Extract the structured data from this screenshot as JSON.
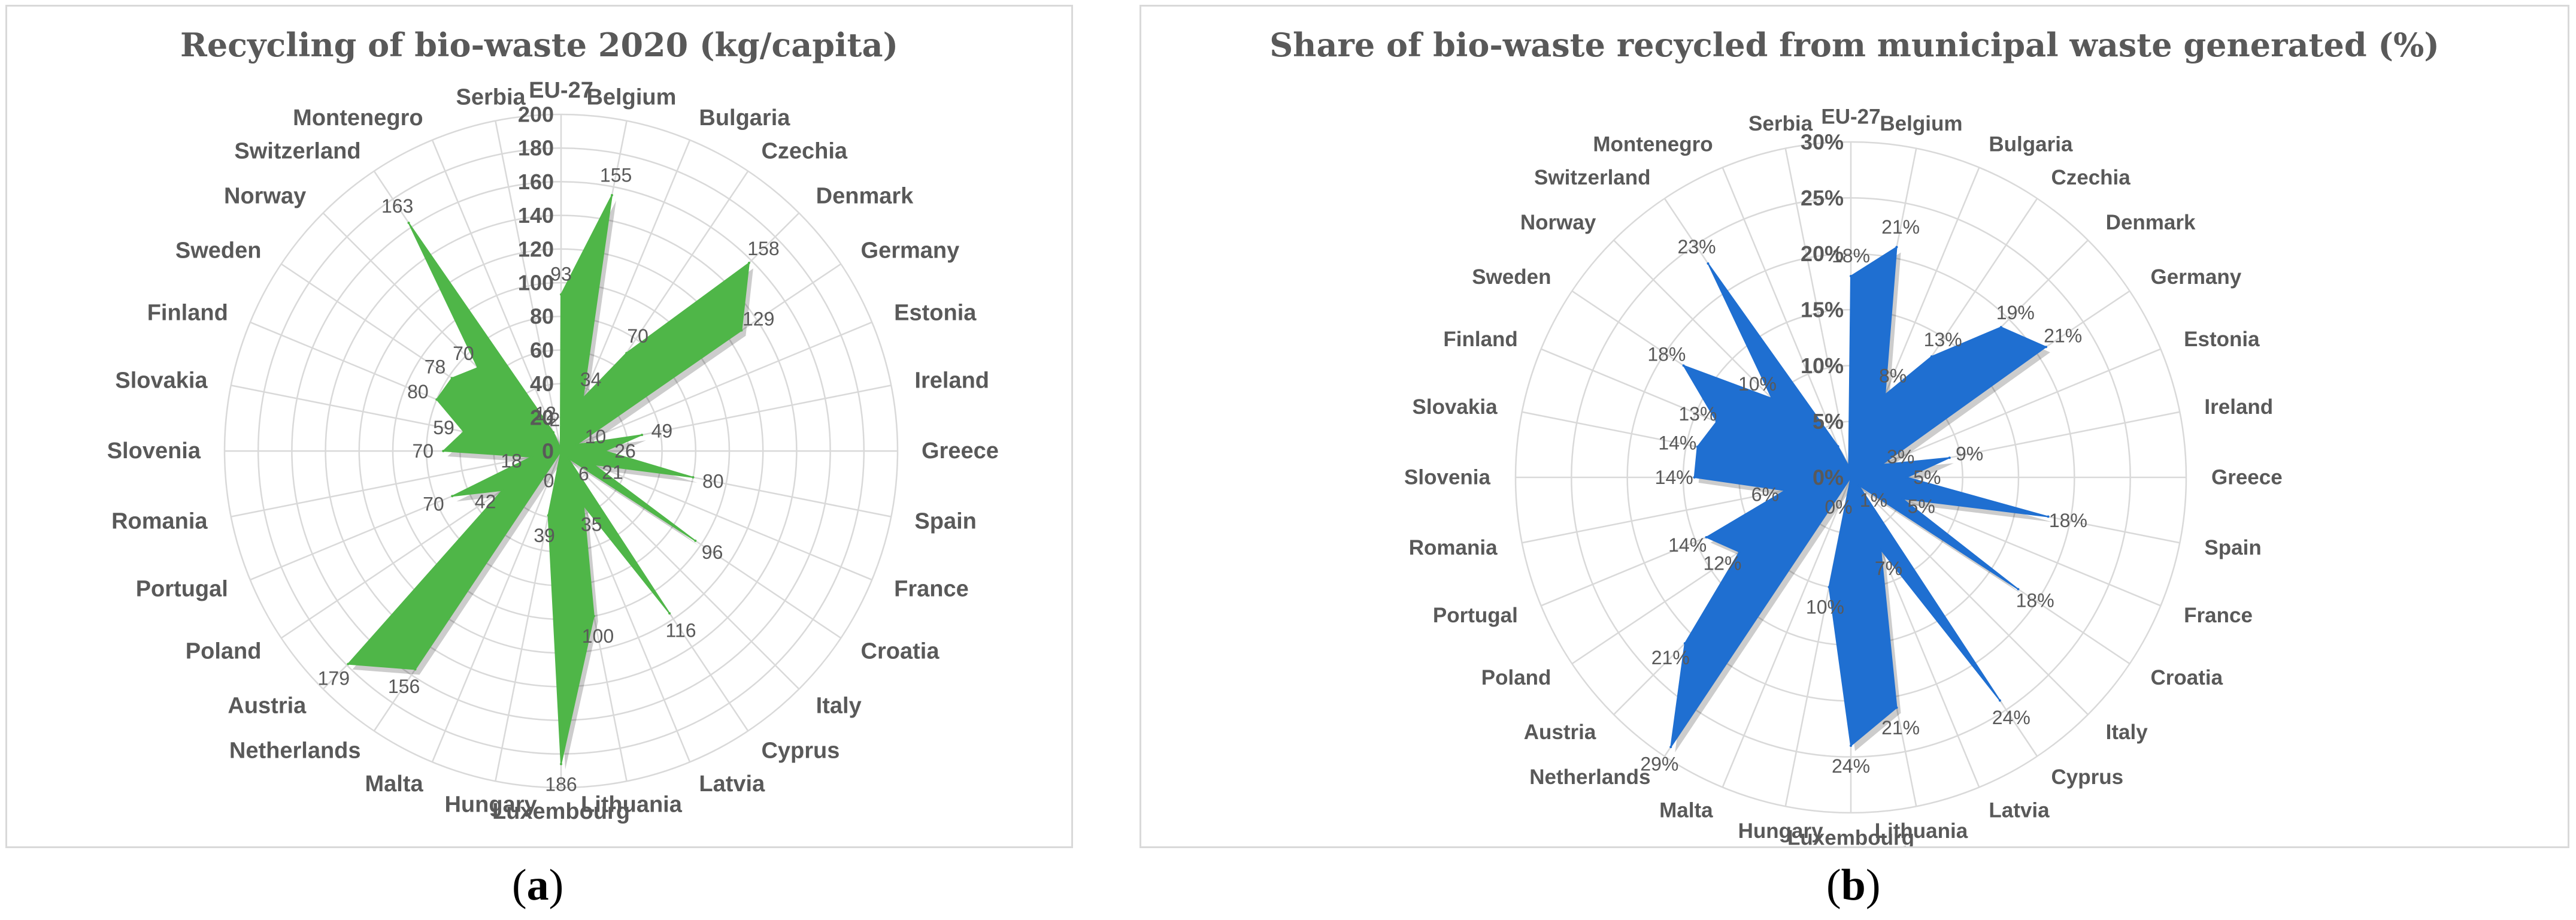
{
  "captions": {
    "a": "a",
    "b": "b"
  },
  "chart_data": [
    {
      "type": "radar",
      "title": "Recycling of bio-waste 2020 (kg/capita)",
      "categories": [
        "EU-27",
        "Belgium",
        "Bulgaria",
        "Czechia",
        "Denmark",
        "Germany",
        "Estonia",
        "Ireland",
        "Greece",
        "Spain",
        "France",
        "Croatia",
        "Italy",
        "Cyprus",
        "Latvia",
        "Lithuania",
        "Luxembourg",
        "Hungary",
        "Malta",
        "Netherlands",
        "Austria",
        "Poland",
        "Portugal",
        "Romania",
        "Slovenia",
        "Slovakia",
        "Finland",
        "Sweden",
        "Norway",
        "Switzerland",
        "Montenegro",
        "Serbia"
      ],
      "values": [
        93,
        155,
        34,
        70,
        158,
        129,
        10,
        49,
        26,
        80,
        21,
        96,
        6,
        116,
        35,
        100,
        186,
        39,
        0,
        156,
        179,
        42,
        70,
        18,
        70,
        59,
        80,
        78,
        70,
        163,
        12,
        2
      ],
      "data_labels": [
        "93",
        "155",
        "34",
        "70",
        "158",
        "129",
        "10",
        "49",
        "26",
        "80",
        "21",
        "96",
        "6",
        "116",
        "35",
        "100",
        "186",
        "39",
        "0",
        "156",
        "179",
        "42",
        "70",
        "18",
        "70",
        "59",
        "80",
        "78",
        "70",
        "163",
        "12",
        "2"
      ],
      "rmax": 200,
      "ticks": [
        "0",
        "20",
        "40",
        "60",
        "80",
        "100",
        "120",
        "140",
        "160",
        "180",
        "200"
      ],
      "color": "#4fb648",
      "grid": true
    },
    {
      "type": "radar",
      "title": "Share of bio-waste recycled from municipal waste generated (%)",
      "categories": [
        "EU-27",
        "Belgium",
        "Bulgaria",
        "Czechia",
        "Denmark",
        "Germany",
        "Estonia",
        "Ireland",
        "Greece",
        "Spain",
        "France",
        "Croatia",
        "Italy",
        "Cyprus",
        "Latvia",
        "Lithuania",
        "Luxembourg",
        "Hungary",
        "Malta",
        "Netherlands",
        "Austria",
        "Poland",
        "Portugal",
        "Romania",
        "Slovenia",
        "Slovakia",
        "Finland",
        "Sweden",
        "Norway",
        "Switzerland",
        "Montenegro",
        "Serbia"
      ],
      "values": [
        18,
        21,
        8,
        13,
        19,
        21,
        3,
        9,
        5,
        18,
        5,
        18,
        1,
        24,
        7,
        21,
        24,
        10,
        0,
        29,
        21,
        12,
        14,
        6,
        14,
        14,
        13,
        18,
        10,
        23,
        3,
        1
      ],
      "data_labels": [
        "18%",
        "21%",
        "8%",
        "13%",
        "19%",
        "21%",
        "3%",
        "9%",
        "5%",
        "18%",
        "5%",
        "18%",
        "1%",
        "24%",
        "7%",
        "21%",
        "24%",
        "10%",
        "0%",
        "29%",
        "21%",
        "12%",
        "14%",
        "6%",
        "14%",
        "14%",
        "13%",
        "18%",
        "10%",
        "23%",
        "",
        ""
      ],
      "rmax": 30,
      "ticks": [
        "0%",
        "5%",
        "10%",
        "15%",
        "20%",
        "25%",
        "30%"
      ],
      "color": "#1f6fd1",
      "grid": true
    }
  ]
}
